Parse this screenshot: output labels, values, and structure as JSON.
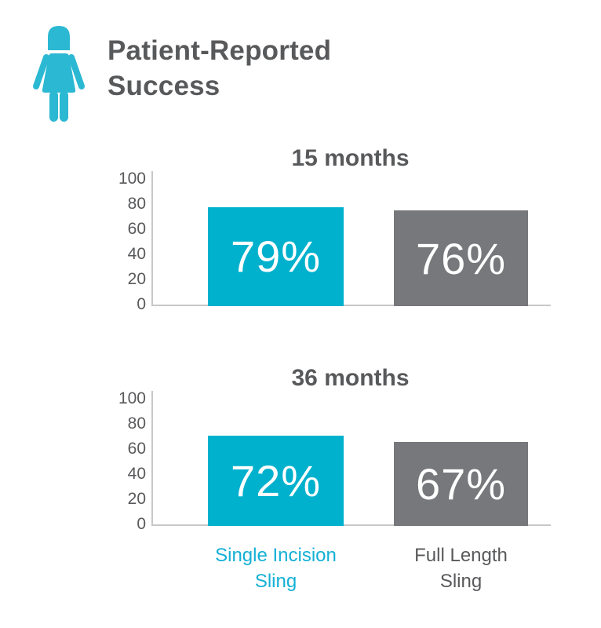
{
  "header": {
    "icon": "woman-figure-icon",
    "title_line1": "Patient-Reported",
    "title_line2": "Success"
  },
  "colors": {
    "teal_bar": "#00b1cd",
    "teal_icon": "#2bb8d2",
    "teal_text": "#14b0d6",
    "gray_bar": "#77787c",
    "dark_text": "#58595b",
    "axis_line": "#c6c7c9",
    "bar_label": "#ffffff"
  },
  "chart_data": [
    {
      "type": "bar",
      "title": "15 months",
      "categories": [
        "Single Incision Sling",
        "Full Length Sling"
      ],
      "values": [
        79,
        76
      ],
      "bar_labels": [
        "79%",
        "76%"
      ],
      "bar_colors": [
        "#00b1cd",
        "#77787c"
      ],
      "ylim": [
        0,
        100
      ],
      "yticks": [
        "100",
        "80",
        "60",
        "40",
        "20",
        "0"
      ],
      "grid": false,
      "legend": false
    },
    {
      "type": "bar",
      "title": "36 months",
      "categories": [
        "Single Incision Sling",
        "Full Length Sling"
      ],
      "values": [
        72,
        67
      ],
      "bar_labels": [
        "72%",
        "67%"
      ],
      "bar_colors": [
        "#00b1cd",
        "#77787c"
      ],
      "ylim": [
        0,
        100
      ],
      "yticks": [
        "100",
        "80",
        "60",
        "40",
        "20",
        "0"
      ],
      "grid": false,
      "legend": false
    }
  ],
  "category_labels": [
    {
      "line1": "Single Incision",
      "line2": "Sling"
    },
    {
      "line1": "Full Length",
      "line2": "Sling"
    }
  ]
}
